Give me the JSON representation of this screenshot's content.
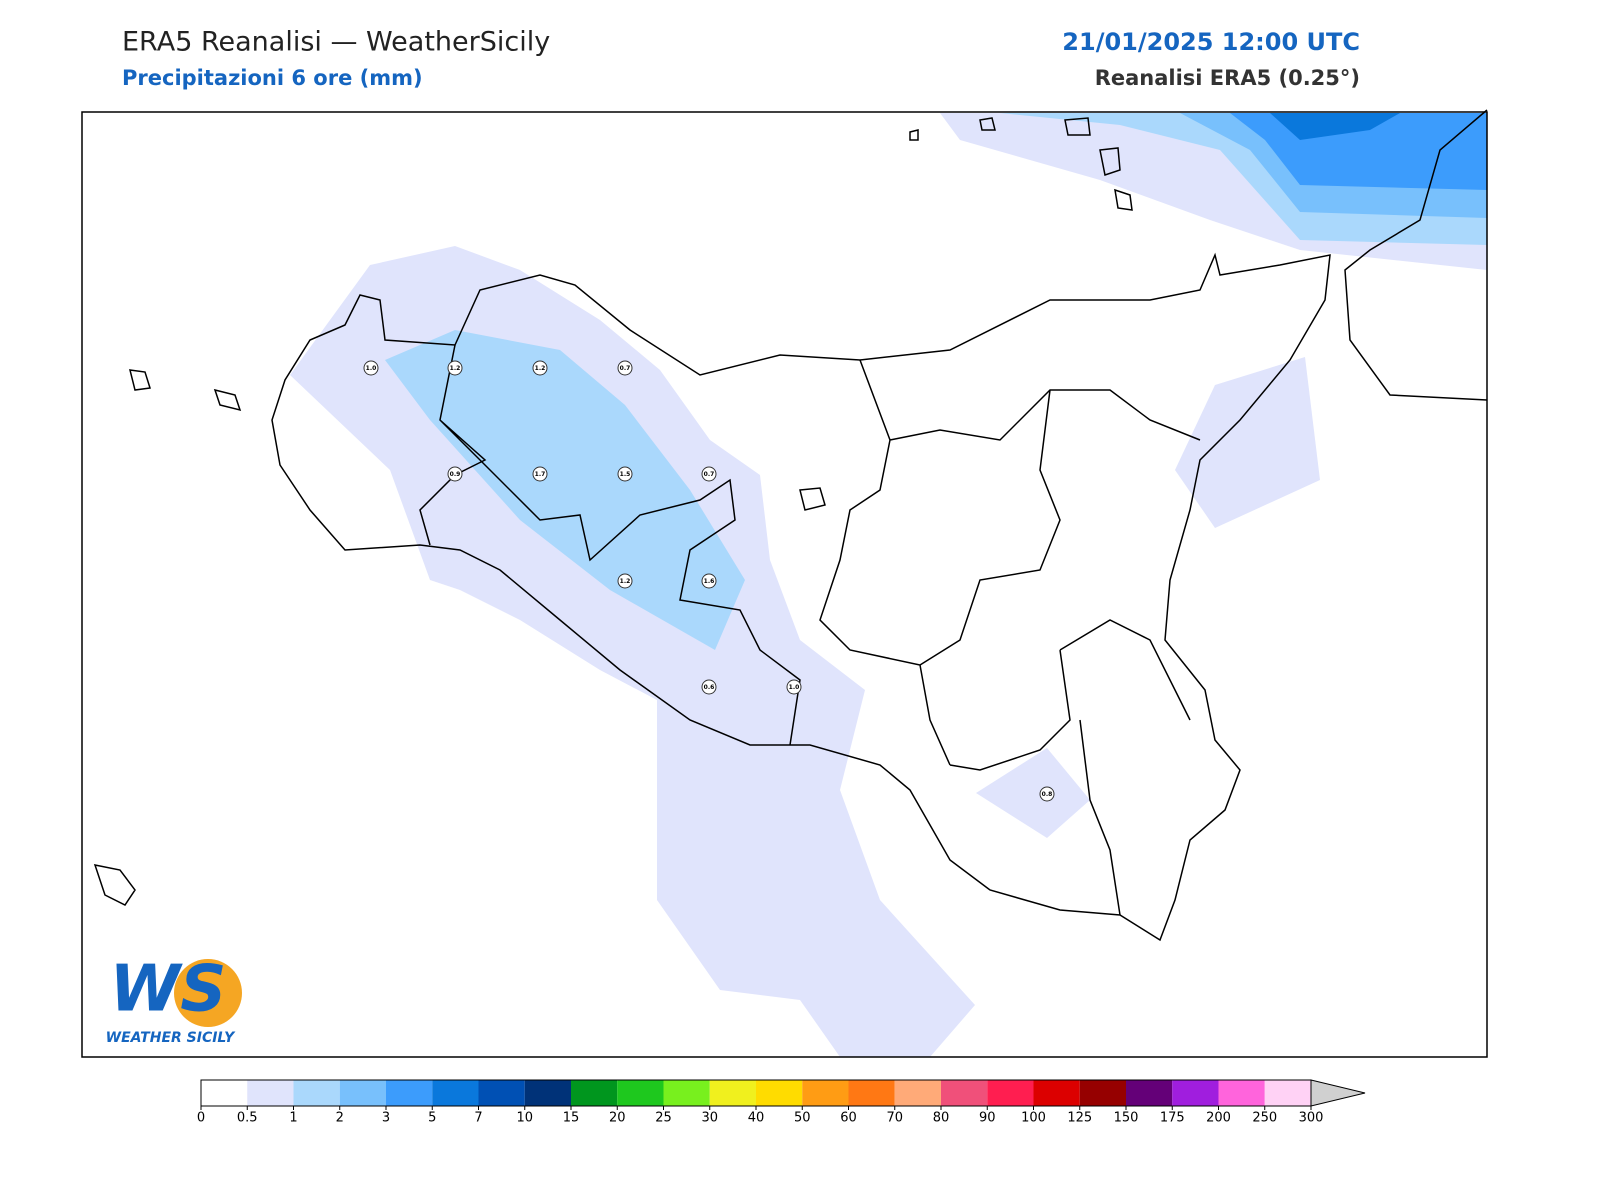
{
  "header": {
    "title": "ERA5 Reanalisi — WeatherSicily",
    "subtitle": "Precipitazioni 6 ore (mm)",
    "datetime": "21/01/2025 12:00 UTC",
    "source": "Reanalisi ERA5 (0.25°)"
  },
  "stations": [
    "1.0",
    "1.2",
    "1.2",
    "0.7",
    "0.9",
    "1.7",
    "1.5",
    "0.7",
    "1.2",
    "1.6",
    "0.6",
    "1.0",
    "0.8"
  ],
  "colorbar": {
    "ticks": [
      0,
      0.5,
      1,
      2,
      3,
      5,
      7,
      10,
      15,
      20,
      25,
      30,
      40,
      50,
      60,
      70,
      80,
      90,
      100,
      125,
      150,
      175,
      200,
      250,
      300
    ],
    "colors": [
      "#ffffff",
      "#e0e4fc",
      "#aad8fc",
      "#78c0fc",
      "#3c9cfc",
      "#0a78dc",
      "#0050b4",
      "#003278",
      "#00961e",
      "#1ec81e",
      "#78f01e",
      "#f0f01e",
      "#ffdc00",
      "#ff9c14",
      "#ff7814",
      "#ffaa78",
      "#f0507a",
      "#ff1e50",
      "#dc0000",
      "#960000",
      "#640078",
      "#a01ede",
      "#ff64dc",
      "#ffd2f5"
    ]
  },
  "logo": {
    "mark": "WS",
    "text": "WEATHER SICILY"
  }
}
